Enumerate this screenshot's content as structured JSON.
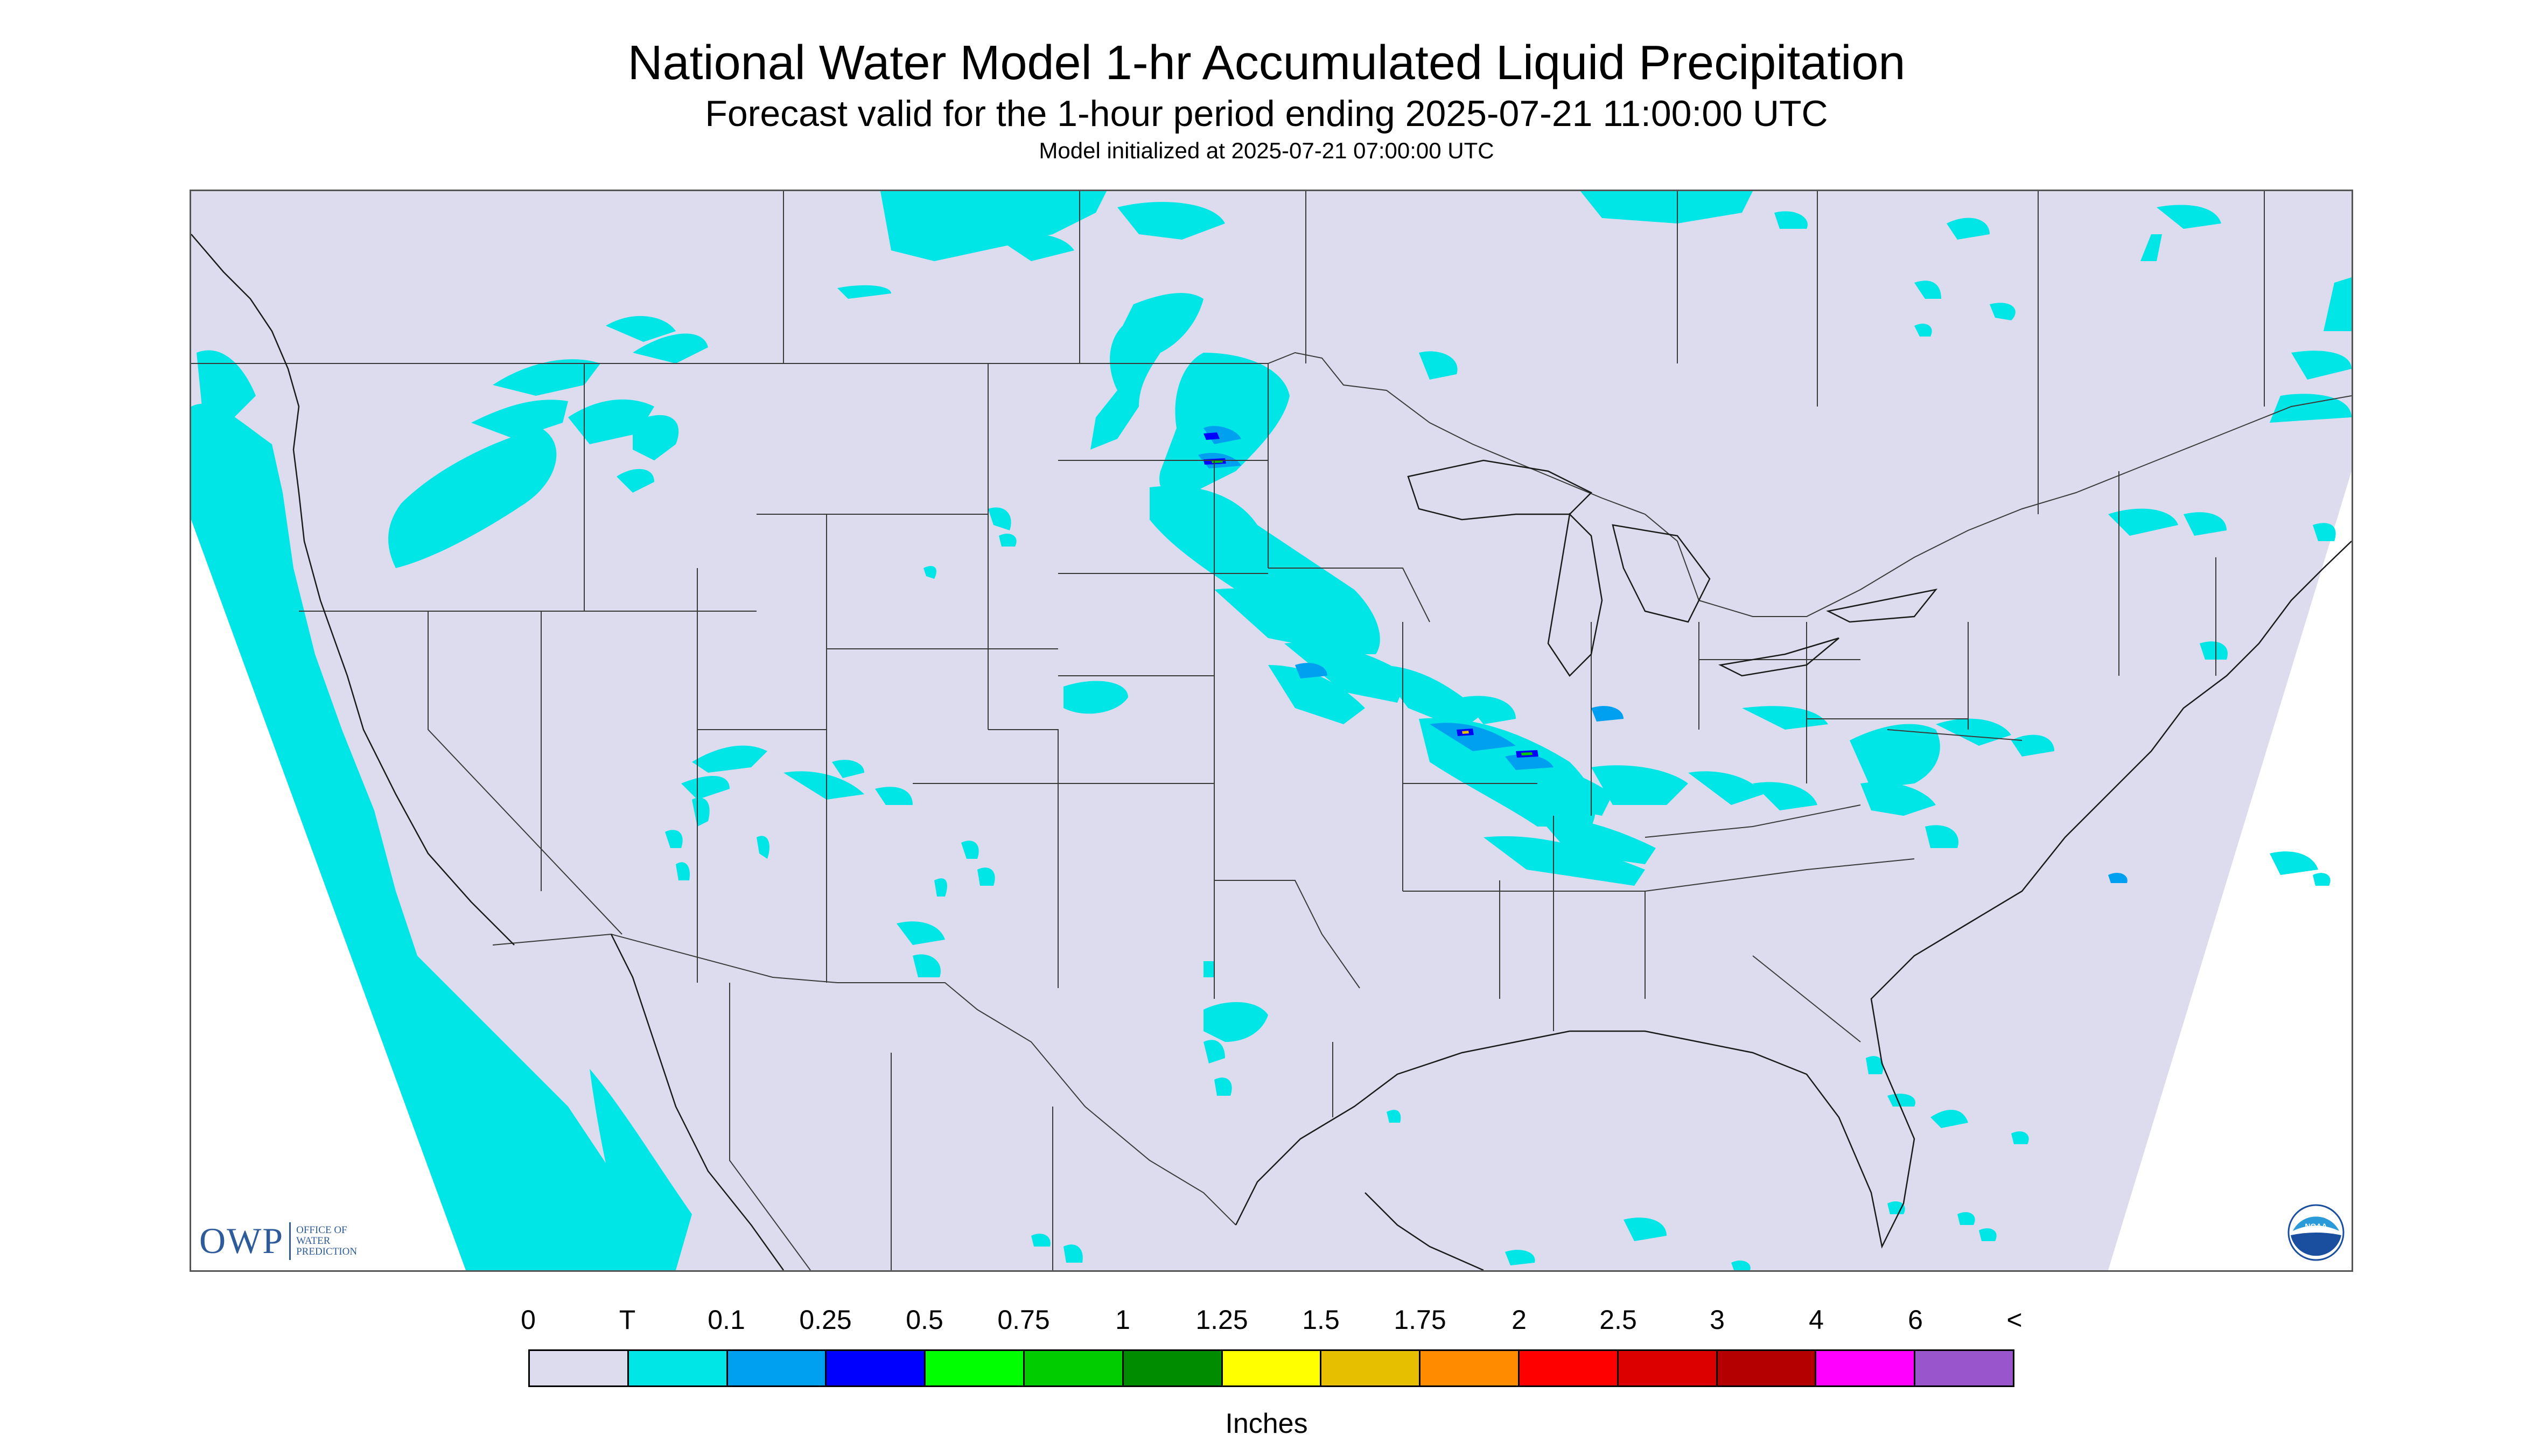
{
  "header": {
    "title": "National Water Model 1-hr Accumulated Liquid Precipitation",
    "subtitle": "Forecast valid for the 1-hour period ending 2025-07-21 11:00:00 UTC",
    "init": "Model initialized at 2025-07-21 07:00:00 UTC"
  },
  "map": {
    "background_color": "#dcdcee",
    "outside_color": "#ffffff",
    "trace_color": "#00e5e5",
    "boundary_color": "#3a3a3a",
    "projection_note_icon": "noaa-logo"
  },
  "logos": {
    "owp_big": "OWP",
    "owp_line1": "OFFICE OF",
    "owp_line2": "WATER",
    "owp_line3": "PREDICTION",
    "noaa_text": "NOAA"
  },
  "legend": {
    "labels": [
      "0",
      "T",
      "0.1",
      "0.25",
      "0.5",
      "0.75",
      "1",
      "1.25",
      "1.5",
      "1.75",
      "2",
      "2.5",
      "3",
      "4",
      "6",
      "<"
    ],
    "colors": [
      "#dcdcee",
      "#00e5e5",
      "#00a0f0",
      "#0000ff",
      "#00ff00",
      "#00cc00",
      "#008c00",
      "#ffff00",
      "#e6c000",
      "#ff8c00",
      "#ff0000",
      "#dc0000",
      "#b40000",
      "#ff00ff",
      "#9955cc"
    ],
    "units": "Inches"
  }
}
